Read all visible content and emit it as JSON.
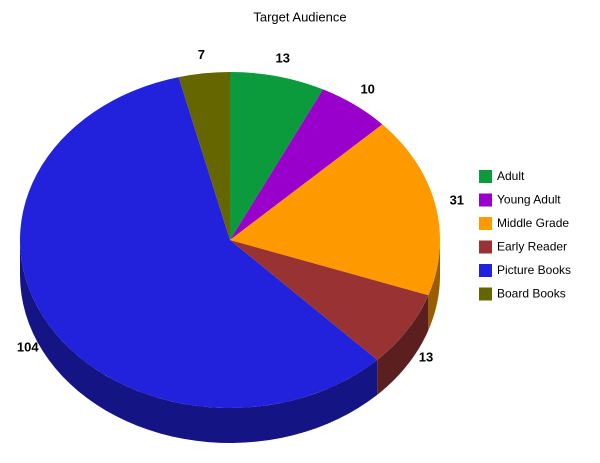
{
  "chart_data": {
    "type": "pie3d",
    "title": "Target Audience",
    "categories": [
      "Adult",
      "Young Adult",
      "Middle Grade",
      "Early Reader",
      "Picture Books",
      "Board Books"
    ],
    "values": [
      13,
      10,
      31,
      13,
      104,
      7
    ],
    "colors": [
      "#0b9a3c",
      "#9a00cc",
      "#ff9900",
      "#993333",
      "#2222dd",
      "#666600"
    ],
    "legend": "right"
  }
}
